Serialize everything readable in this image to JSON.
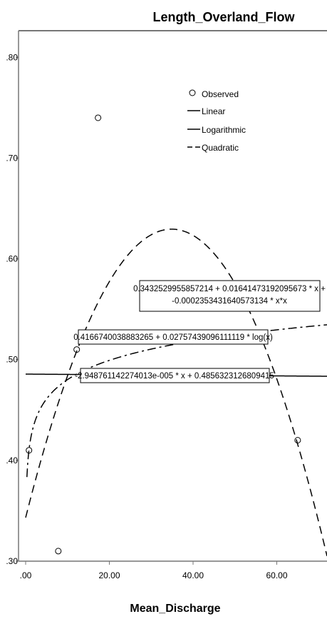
{
  "chart_data": {
    "type": "scatter",
    "title": "Length_Overland_Flow",
    "xlabel": "Mean_Discharge",
    "ylabel": "",
    "xlim": [
      0,
      72
    ],
    "ylim": [
      0.3,
      0.825
    ],
    "xticks": [
      0,
      20,
      40,
      60
    ],
    "xtick_labels": [
      ".00",
      "20.00",
      "40.00",
      "60.00"
    ],
    "yticks": [
      0.3,
      0.4,
      0.5,
      0.6,
      0.7,
      0.8
    ],
    "ytick_labels": [
      ".30",
      ".40",
      ".50",
      ".60",
      ".70",
      ".80"
    ],
    "grid": false,
    "legend_position": "top-right",
    "observed": {
      "name": "Observed",
      "x": [
        0.8,
        7.8,
        12.2,
        17.3,
        65.0
      ],
      "y": [
        0.41,
        0.31,
        0.51,
        0.74,
        0.42
      ]
    },
    "fits": [
      {
        "name": "Linear",
        "style": "solid",
        "kind": "linear",
        "coef": [
          0.4856323126809415,
          -2.948761142274013e-05
        ],
        "equation": "-2.948761142274013e-005 * x + 0.4856323126809415"
      },
      {
        "name": "Logarithmic",
        "style": "dashdot",
        "kind": "log",
        "coef": [
          0.4166740038883265,
          0.02757439096111119
        ],
        "equation": "0.4166740038883265 + 0.02757439096111119 * log(x)"
      },
      {
        "name": "Quadratic",
        "style": "dashed",
        "kind": "quadratic",
        "coef": [
          0.3432529955857214,
          0.01641473192095673,
          -0.0002353431640573134
        ],
        "equation_line1": "0.3432529955857214 + 0.01641473192095673 * x +",
        "equation_line2": "-0.0002353431640573134 * x*x"
      }
    ]
  }
}
